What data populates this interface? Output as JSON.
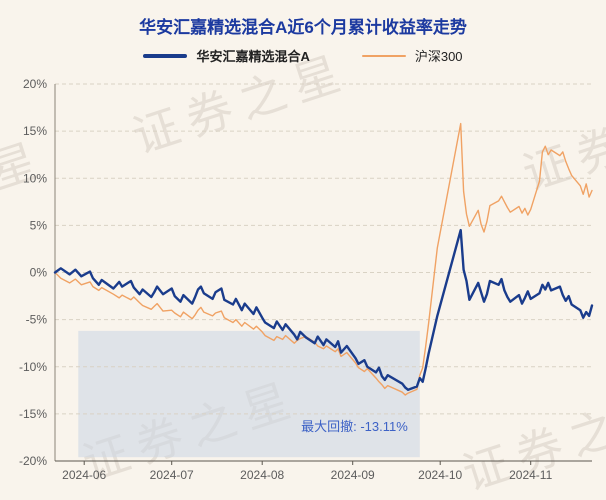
{
  "watermark": {
    "text": "证券之星"
  },
  "chart_data": {
    "type": "line",
    "title": "华安汇嘉精选混合A近6个月累计收益率走势",
    "xlabel": "",
    "ylabel": "",
    "ylim": [
      -20,
      20
    ],
    "ytick_suffix": "%",
    "yticks": [
      20,
      15,
      10,
      5,
      0,
      -5,
      -10,
      -15,
      -20
    ],
    "grid": true,
    "legend_position": "top",
    "x_range": [
      "2024-05-22",
      "2024-11-22"
    ],
    "xticks": [
      {
        "date": "2024-06-01",
        "label": "2024-06"
      },
      {
        "date": "2024-07-01",
        "label": "2024-07"
      },
      {
        "date": "2024-08-01",
        "label": "2024-08"
      },
      {
        "date": "2024-09-01",
        "label": "2024-09"
      },
      {
        "date": "2024-10-01",
        "label": "2024-10"
      },
      {
        "date": "2024-11-01",
        "label": "2024-11"
      }
    ],
    "drawdown": {
      "label": "最大回撤: -13.11%",
      "value_pct": -13.11,
      "start": "2024-05-30",
      "end": "2024-09-24",
      "top": -6.2,
      "bottom": -19.6,
      "color": "rgba(203,213,229,0.55)",
      "label_color": "#3d62c6"
    },
    "series": [
      {
        "name": "华安汇嘉精选混合A",
        "color": "#1a3c8c",
        "width": 2.4,
        "points": [
          [
            "2024-05-22",
            0
          ],
          [
            "2024-05-24",
            0.45
          ],
          [
            "2024-05-27",
            -0.2
          ],
          [
            "2024-05-29",
            0.3
          ],
          [
            "2024-05-31",
            -0.4
          ],
          [
            "2024-06-03",
            0.1
          ],
          [
            "2024-06-04",
            -0.6
          ],
          [
            "2024-06-06",
            -1.3
          ],
          [
            "2024-06-07",
            -0.8
          ],
          [
            "2024-06-11",
            -1.7
          ],
          [
            "2024-06-13",
            -1.0
          ],
          [
            "2024-06-14",
            -1.5
          ],
          [
            "2024-06-17",
            -0.9
          ],
          [
            "2024-06-18",
            -1.6
          ],
          [
            "2024-06-20",
            -2.3
          ],
          [
            "2024-06-21",
            -1.8
          ],
          [
            "2024-06-24",
            -2.6
          ],
          [
            "2024-06-25",
            -2.1
          ],
          [
            "2024-06-26",
            -1.5
          ],
          [
            "2024-06-28",
            -2.3
          ],
          [
            "2024-07-01",
            -1.7
          ],
          [
            "2024-07-02",
            -2.5
          ],
          [
            "2024-07-04",
            -3.1
          ],
          [
            "2024-07-05",
            -2.4
          ],
          [
            "2024-07-08",
            -3.3
          ],
          [
            "2024-07-09",
            -2.6
          ],
          [
            "2024-07-10",
            -1.8
          ],
          [
            "2024-07-11",
            -1.5
          ],
          [
            "2024-07-12",
            -2.2
          ],
          [
            "2024-07-15",
            -2.8
          ],
          [
            "2024-07-16",
            -2.1
          ],
          [
            "2024-07-18",
            -1.7
          ],
          [
            "2024-07-19",
            -2.9
          ],
          [
            "2024-07-22",
            -3.4
          ],
          [
            "2024-07-23",
            -2.8
          ],
          [
            "2024-07-25",
            -4.0
          ],
          [
            "2024-07-26",
            -3.3
          ],
          [
            "2024-07-29",
            -4.4
          ],
          [
            "2024-07-30",
            -3.7
          ],
          [
            "2024-08-01",
            -4.8
          ],
          [
            "2024-08-02",
            -5.3
          ],
          [
            "2024-08-05",
            -5.9
          ],
          [
            "2024-08-06",
            -5.2
          ],
          [
            "2024-08-08",
            -6.1
          ],
          [
            "2024-08-09",
            -5.5
          ],
          [
            "2024-08-12",
            -6.6
          ],
          [
            "2024-08-13",
            -7.1
          ],
          [
            "2024-08-14",
            -6.3
          ],
          [
            "2024-08-16",
            -6.9
          ],
          [
            "2024-08-19",
            -7.5
          ],
          [
            "2024-08-20",
            -6.8
          ],
          [
            "2024-08-22",
            -7.7
          ],
          [
            "2024-08-23",
            -7.1
          ],
          [
            "2024-08-26",
            -7.9
          ],
          [
            "2024-08-27",
            -7.3
          ],
          [
            "2024-08-28",
            -8.5
          ],
          [
            "2024-08-30",
            -7.8
          ],
          [
            "2024-09-02",
            -9.1
          ],
          [
            "2024-09-03",
            -9.7
          ],
          [
            "2024-09-05",
            -9.3
          ],
          [
            "2024-09-06",
            -10.0
          ],
          [
            "2024-09-09",
            -10.6
          ],
          [
            "2024-09-10",
            -10.1
          ],
          [
            "2024-09-11",
            -11.0
          ],
          [
            "2024-09-12",
            -11.4
          ],
          [
            "2024-09-13",
            -10.9
          ],
          [
            "2024-09-18",
            -11.8
          ],
          [
            "2024-09-19",
            -12.2
          ],
          [
            "2024-09-20",
            -12.45
          ],
          [
            "2024-09-23",
            -12.1
          ],
          [
            "2024-09-24",
            -11.2
          ],
          [
            "2024-09-25",
            -11.6
          ],
          [
            "2024-09-26",
            -10.2
          ],
          [
            "2024-09-27",
            -8.6
          ],
          [
            "2024-09-30",
            -4.6
          ],
          [
            "2024-10-08",
            4.5
          ],
          [
            "2024-10-09",
            0.3
          ],
          [
            "2024-10-10",
            -0.9
          ],
          [
            "2024-10-11",
            -2.9
          ],
          [
            "2024-10-14",
            -1.1
          ],
          [
            "2024-10-15",
            -2.1
          ],
          [
            "2024-10-16",
            -3.1
          ],
          [
            "2024-10-17",
            -2.3
          ],
          [
            "2024-10-18",
            -0.9
          ],
          [
            "2024-10-21",
            -1.3
          ],
          [
            "2024-10-22",
            -0.7
          ],
          [
            "2024-10-23",
            -1.9
          ],
          [
            "2024-10-24",
            -2.6
          ],
          [
            "2024-10-25",
            -3.1
          ],
          [
            "2024-10-28",
            -2.4
          ],
          [
            "2024-10-29",
            -3.3
          ],
          [
            "2024-10-30",
            -2.7
          ],
          [
            "2024-10-31",
            -2.0
          ],
          [
            "2024-11-01",
            -2.8
          ],
          [
            "2024-11-04",
            -2.2
          ],
          [
            "2024-11-05",
            -1.3
          ],
          [
            "2024-11-06",
            -1.8
          ],
          [
            "2024-11-07",
            -1.1
          ],
          [
            "2024-11-08",
            -1.9
          ],
          [
            "2024-11-11",
            -1.5
          ],
          [
            "2024-11-12",
            -2.4
          ],
          [
            "2024-11-13",
            -3.0
          ],
          [
            "2024-11-14",
            -2.5
          ],
          [
            "2024-11-15",
            -3.4
          ],
          [
            "2024-11-18",
            -4.0
          ],
          [
            "2024-11-19",
            -4.8
          ],
          [
            "2024-11-20",
            -4.2
          ],
          [
            "2024-11-21",
            -4.6
          ],
          [
            "2024-11-22",
            -3.5
          ]
        ]
      },
      {
        "name": "沪深300",
        "color": "#f0a264",
        "width": 1.4,
        "points": [
          [
            "2024-05-22",
            0
          ],
          [
            "2024-05-24",
            -0.6
          ],
          [
            "2024-05-27",
            -1.1
          ],
          [
            "2024-05-29",
            -0.7
          ],
          [
            "2024-05-31",
            -1.3
          ],
          [
            "2024-06-03",
            -1.0
          ],
          [
            "2024-06-04",
            -1.5
          ],
          [
            "2024-06-06",
            -1.9
          ],
          [
            "2024-06-07",
            -1.6
          ],
          [
            "2024-06-11",
            -2.3
          ],
          [
            "2024-06-13",
            -2.7
          ],
          [
            "2024-06-14",
            -2.4
          ],
          [
            "2024-06-17",
            -2.9
          ],
          [
            "2024-06-18",
            -2.6
          ],
          [
            "2024-06-20",
            -3.2
          ],
          [
            "2024-06-21",
            -3.5
          ],
          [
            "2024-06-24",
            -3.9
          ],
          [
            "2024-06-25",
            -3.6
          ],
          [
            "2024-06-26",
            -3.3
          ],
          [
            "2024-06-28",
            -4.1
          ],
          [
            "2024-07-01",
            -4.0
          ],
          [
            "2024-07-02",
            -4.3
          ],
          [
            "2024-07-04",
            -4.7
          ],
          [
            "2024-07-05",
            -4.2
          ],
          [
            "2024-07-08",
            -4.9
          ],
          [
            "2024-07-09",
            -4.5
          ],
          [
            "2024-07-10",
            -4.0
          ],
          [
            "2024-07-11",
            -3.7
          ],
          [
            "2024-07-12",
            -4.2
          ],
          [
            "2024-07-15",
            -4.6
          ],
          [
            "2024-07-16",
            -4.3
          ],
          [
            "2024-07-18",
            -4.1
          ],
          [
            "2024-07-19",
            -4.8
          ],
          [
            "2024-07-22",
            -5.3
          ],
          [
            "2024-07-23",
            -5.0
          ],
          [
            "2024-07-25",
            -5.7
          ],
          [
            "2024-07-26",
            -5.3
          ],
          [
            "2024-07-29",
            -6.0
          ],
          [
            "2024-07-30",
            -5.7
          ],
          [
            "2024-08-01",
            -6.3
          ],
          [
            "2024-08-02",
            -6.7
          ],
          [
            "2024-08-05",
            -7.2
          ],
          [
            "2024-08-06",
            -6.8
          ],
          [
            "2024-08-08",
            -7.1
          ],
          [
            "2024-08-09",
            -6.7
          ],
          [
            "2024-08-12",
            -7.5
          ],
          [
            "2024-08-13",
            -7.2
          ],
          [
            "2024-08-14",
            -7.0
          ],
          [
            "2024-08-16",
            -6.8
          ],
          [
            "2024-08-19",
            -7.4
          ],
          [
            "2024-08-20",
            -7.8
          ],
          [
            "2024-08-22",
            -8.1
          ],
          [
            "2024-08-23",
            -7.8
          ],
          [
            "2024-08-26",
            -8.4
          ],
          [
            "2024-08-27",
            -8.1
          ],
          [
            "2024-08-28",
            -8.9
          ],
          [
            "2024-08-30",
            -8.5
          ],
          [
            "2024-09-02",
            -9.6
          ],
          [
            "2024-09-03",
            -10.1
          ],
          [
            "2024-09-05",
            -10.5
          ],
          [
            "2024-09-06",
            -10.2
          ],
          [
            "2024-09-09",
            -11.2
          ],
          [
            "2024-09-10",
            -11.6
          ],
          [
            "2024-09-11",
            -11.9
          ],
          [
            "2024-09-12",
            -12.3
          ],
          [
            "2024-09-13",
            -12.0
          ],
          [
            "2024-09-18",
            -12.7
          ],
          [
            "2024-09-19",
            -13.0
          ],
          [
            "2024-09-20",
            -12.8
          ],
          [
            "2024-09-23",
            -12.4
          ],
          [
            "2024-09-24",
            -10.9
          ],
          [
            "2024-09-25",
            -10.1
          ],
          [
            "2024-09-26",
            -7.9
          ],
          [
            "2024-09-27",
            -5.4
          ],
          [
            "2024-09-30",
            2.6
          ],
          [
            "2024-10-08",
            15.8
          ],
          [
            "2024-10-09",
            8.6
          ],
          [
            "2024-10-10",
            6.2
          ],
          [
            "2024-10-11",
            4.9
          ],
          [
            "2024-10-14",
            6.6
          ],
          [
            "2024-10-15",
            5.1
          ],
          [
            "2024-10-16",
            4.3
          ],
          [
            "2024-10-17",
            5.4
          ],
          [
            "2024-10-18",
            7.1
          ],
          [
            "2024-10-21",
            7.6
          ],
          [
            "2024-10-22",
            8.1
          ],
          [
            "2024-10-23",
            7.5
          ],
          [
            "2024-10-24",
            6.9
          ],
          [
            "2024-10-25",
            6.4
          ],
          [
            "2024-10-28",
            7.0
          ],
          [
            "2024-10-29",
            6.3
          ],
          [
            "2024-10-30",
            6.8
          ],
          [
            "2024-10-31",
            6.1
          ],
          [
            "2024-11-01",
            6.7
          ],
          [
            "2024-11-04",
            9.7
          ],
          [
            "2024-11-05",
            12.8
          ],
          [
            "2024-11-06",
            13.4
          ],
          [
            "2024-11-07",
            12.5
          ],
          [
            "2024-11-08",
            13.0
          ],
          [
            "2024-11-11",
            12.4
          ],
          [
            "2024-11-12",
            12.8
          ],
          [
            "2024-11-13",
            11.8
          ],
          [
            "2024-11-14",
            11.0
          ],
          [
            "2024-11-15",
            10.3
          ],
          [
            "2024-11-18",
            9.2
          ],
          [
            "2024-11-19",
            8.3
          ],
          [
            "2024-11-20",
            9.4
          ],
          [
            "2024-11-21",
            8.0
          ],
          [
            "2024-11-22",
            8.7
          ]
        ]
      }
    ]
  }
}
